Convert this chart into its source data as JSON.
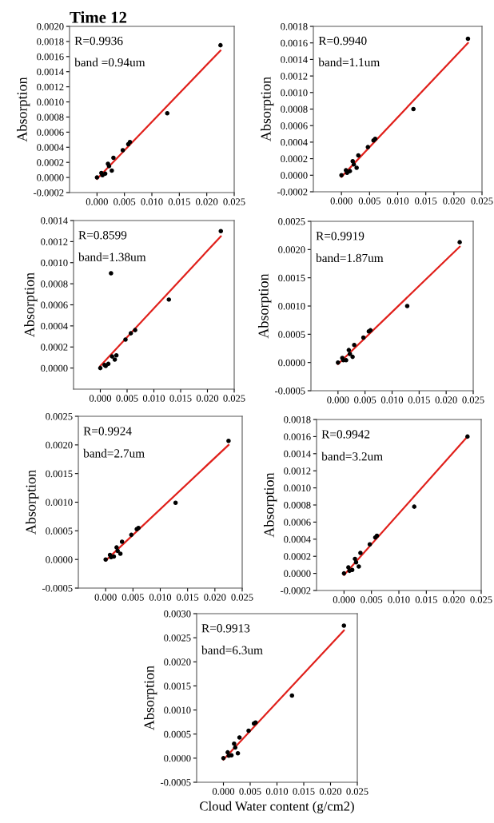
{
  "chart_data": [
    {
      "type": "scatter",
      "title": "Time 12",
      "ylabel": "Absorption",
      "annotations": [
        "R=0.9936",
        "band =0.94um"
      ],
      "xlim": [
        -0.005,
        0.025
      ],
      "ylim": [
        -0.0002,
        0.002
      ],
      "grid": false,
      "legend": false,
      "xticks": [
        {
          "value": 0,
          "label": "0.000"
        },
        {
          "value": 0.005,
          "label": "0.005"
        },
        {
          "value": 0.01,
          "label": "0.010"
        },
        {
          "value": 0.015,
          "label": "0.015"
        },
        {
          "value": 0.02,
          "label": "0.020"
        },
        {
          "value": 0.025,
          "label": "0.025"
        }
      ],
      "yticks": [
        {
          "value": -0.0002,
          "label": "-0.0002"
        },
        {
          "value": 0,
          "label": "0.0000"
        },
        {
          "value": 0.0002,
          "label": "0.0002"
        },
        {
          "value": 0.0004,
          "label": "0.0004"
        },
        {
          "value": 0.0006,
          "label": "0.0006"
        },
        {
          "value": 0.0008,
          "label": "0.0008"
        },
        {
          "value": 0.001,
          "label": "0.0010"
        },
        {
          "value": 0.0012,
          "label": "0.0012"
        },
        {
          "value": 0.0014,
          "label": "0.0014"
        },
        {
          "value": 0.0016,
          "label": "0.0016"
        },
        {
          "value": 0.0018,
          "label": "0.0018"
        },
        {
          "value": 0.002,
          "label": "0.0020"
        }
      ],
      "series": [
        {
          "color": "#000000",
          "marker": "circle",
          "x": [
            0.0,
            0.0008,
            0.001,
            0.0015,
            0.002,
            0.0022,
            0.0027,
            0.003,
            0.0047,
            0.0057,
            0.006,
            0.0128,
            0.0225
          ],
          "values": [
            0.0,
            6e-05,
            3e-05,
            5e-05,
            0.00018,
            0.00015,
            9e-05,
            0.00026,
            0.00036,
            0.00044,
            0.00047,
            0.00085,
            0.00175
          ]
        },
        {
          "type": "line",
          "marker": "none",
          "color": "#e0201b",
          "x": [
            0.0,
            0.0225
          ],
          "values": [
            -2e-05,
            0.00168
          ]
        }
      ]
    },
    {
      "type": "scatter",
      "ylabel": "Absorption",
      "annotations": [
        "R=0.9940",
        "band=1.1um"
      ],
      "xlim": [
        -0.005,
        0.025
      ],
      "ylim": [
        -0.0002,
        0.0018
      ],
      "grid": false,
      "legend": false,
      "xticks": [
        {
          "value": 0,
          "label": "0.000"
        },
        {
          "value": 0.005,
          "label": "0.005"
        },
        {
          "value": 0.01,
          "label": "0.010"
        },
        {
          "value": 0.015,
          "label": "0.015"
        },
        {
          "value": 0.02,
          "label": "0.020"
        },
        {
          "value": 0.025,
          "label": "0.025"
        }
      ],
      "yticks": [
        {
          "value": -0.0002,
          "label": "-0.0002"
        },
        {
          "value": 0,
          "label": "0.0000"
        },
        {
          "value": 0.0002,
          "label": "0.0002"
        },
        {
          "value": 0.0004,
          "label": "0.0004"
        },
        {
          "value": 0.0006,
          "label": "0.0006"
        },
        {
          "value": 0.0008,
          "label": "0.0008"
        },
        {
          "value": 0.001,
          "label": "0.0010"
        },
        {
          "value": 0.0012,
          "label": "0.0012"
        },
        {
          "value": 0.0014,
          "label": "0.0014"
        },
        {
          "value": 0.0016,
          "label": "0.0016"
        },
        {
          "value": 0.0018,
          "label": "0.0018"
        }
      ],
      "series": [
        {
          "color": "#000000",
          "marker": "circle",
          "x": [
            0.0,
            0.0008,
            0.001,
            0.0015,
            0.002,
            0.0022,
            0.0027,
            0.003,
            0.0047,
            0.0057,
            0.006,
            0.0128,
            0.0225
          ],
          "values": [
            0.0,
            6e-05,
            3e-05,
            5e-05,
            0.00017,
            0.00013,
            9e-05,
            0.00024,
            0.00034,
            0.00042,
            0.00044,
            0.0008,
            0.00165
          ]
        },
        {
          "type": "line",
          "marker": "none",
          "color": "#e0201b",
          "x": [
            0.0,
            0.0225
          ],
          "values": [
            -2e-05,
            0.0016
          ]
        }
      ]
    },
    {
      "type": "scatter",
      "ylabel": "Absorption",
      "annotations": [
        "R=0.8599",
        "band=1.38um"
      ],
      "xlim": [
        -0.005,
        0.025
      ],
      "ylim": [
        -0.0002,
        0.0014
      ],
      "grid": false,
      "legend": false,
      "xticks": [
        {
          "value": 0,
          "label": "0.000"
        },
        {
          "value": 0.005,
          "label": "0.005"
        },
        {
          "value": 0.01,
          "label": "0.010"
        },
        {
          "value": 0.015,
          "label": "0.015"
        },
        {
          "value": 0.02,
          "label": "0.020"
        },
        {
          "value": 0.025,
          "label": "0.025"
        }
      ],
      "yticks": [
        {
          "value": 0,
          "label": "0.0000"
        },
        {
          "value": 0.0002,
          "label": "0.0002"
        },
        {
          "value": 0.0004,
          "label": "0.0004"
        },
        {
          "value": 0.0006,
          "label": "0.0006"
        },
        {
          "value": 0.0008,
          "label": "0.0008"
        },
        {
          "value": 0.001,
          "label": "0.0010"
        },
        {
          "value": 0.0012,
          "label": "0.0012"
        },
        {
          "value": 0.0014,
          "label": "0.0014"
        }
      ],
      "series": [
        {
          "color": "#000000",
          "marker": "circle",
          "x": [
            0.0,
            0.0008,
            0.001,
            0.0015,
            0.002,
            0.0022,
            0.0027,
            0.003,
            0.0047,
            0.0057,
            0.0065,
            0.0128,
            0.0225
          ],
          "values": [
            0.0,
            3e-05,
            2e-05,
            4e-05,
            0.0009,
            0.00011,
            8e-05,
            0.00012,
            0.00027,
            0.00033,
            0.00036,
            0.00065,
            0.0013
          ]
        },
        {
          "type": "line",
          "marker": "none",
          "color": "#e0201b",
          "x": [
            0.0,
            0.0225
          ],
          "values": [
            2e-05,
            0.00125
          ]
        }
      ]
    },
    {
      "type": "scatter",
      "ylabel": "Absorption",
      "annotations": [
        "R=0.9919",
        "band=1.87um"
      ],
      "xlim": [
        -0.005,
        0.025
      ],
      "ylim": [
        -0.0005,
        0.0025
      ],
      "grid": false,
      "legend": false,
      "xticks": [
        {
          "value": 0,
          "label": "0.000"
        },
        {
          "value": 0.005,
          "label": "0.005"
        },
        {
          "value": 0.01,
          "label": "0.010"
        },
        {
          "value": 0.015,
          "label": "0.015"
        },
        {
          "value": 0.02,
          "label": "0.020"
        },
        {
          "value": 0.025,
          "label": "0.025"
        }
      ],
      "yticks": [
        {
          "value": -0.0005,
          "label": "-0.0005"
        },
        {
          "value": 0,
          "label": "0.0000"
        },
        {
          "value": 0.0005,
          "label": "0.0005"
        },
        {
          "value": 0.001,
          "label": "0.0010"
        },
        {
          "value": 0.0015,
          "label": "0.0015"
        },
        {
          "value": 0.002,
          "label": "0.0020"
        },
        {
          "value": 0.0025,
          "label": "0.0025"
        }
      ],
      "series": [
        {
          "color": "#000000",
          "marker": "circle",
          "x": [
            0.0,
            0.0008,
            0.001,
            0.0015,
            0.002,
            0.0022,
            0.0027,
            0.003,
            0.0047,
            0.0057,
            0.006,
            0.0128,
            0.0225
          ],
          "values": [
            0.0,
            8e-05,
            4e-05,
            4e-05,
            0.00022,
            0.00015,
            0.0001,
            0.00031,
            0.00044,
            0.00055,
            0.00057,
            0.001,
            0.00213
          ]
        },
        {
          "type": "line",
          "marker": "none",
          "color": "#e0201b",
          "x": [
            0.0,
            0.0225
          ],
          "values": [
            -3e-05,
            0.00205
          ]
        }
      ]
    },
    {
      "type": "scatter",
      "ylabel": "Absorption",
      "annotations": [
        "R=0.9924",
        "band=2.7um"
      ],
      "xlim": [
        -0.005,
        0.025
      ],
      "ylim": [
        -0.0005,
        0.0025
      ],
      "grid": false,
      "legend": false,
      "xticks": [
        {
          "value": 0,
          "label": "0.000"
        },
        {
          "value": 0.005,
          "label": "0.005"
        },
        {
          "value": 0.01,
          "label": "0.010"
        },
        {
          "value": 0.015,
          "label": "0.015"
        },
        {
          "value": 0.02,
          "label": "0.020"
        },
        {
          "value": 0.025,
          "label": "0.025"
        }
      ],
      "yticks": [
        {
          "value": -0.0005,
          "label": "-0.0005"
        },
        {
          "value": 0,
          "label": "0.0000"
        },
        {
          "value": 0.0005,
          "label": "0.0005"
        },
        {
          "value": 0.001,
          "label": "0.0010"
        },
        {
          "value": 0.0015,
          "label": "0.0015"
        },
        {
          "value": 0.002,
          "label": "0.0020"
        },
        {
          "value": 0.0025,
          "label": "0.0025"
        }
      ],
      "series": [
        {
          "color": "#000000",
          "marker": "circle",
          "x": [
            0.0,
            0.0008,
            0.001,
            0.0015,
            0.002,
            0.0022,
            0.0027,
            0.003,
            0.0047,
            0.0057,
            0.006,
            0.0128,
            0.0225
          ],
          "values": [
            0.0,
            8e-05,
            4e-05,
            5e-05,
            0.00021,
            0.00015,
            0.0001,
            0.00031,
            0.00043,
            0.00053,
            0.00055,
            0.00099,
            0.00207
          ]
        },
        {
          "type": "line",
          "marker": "none",
          "color": "#e0201b",
          "x": [
            0.0,
            0.0225
          ],
          "values": [
            -2e-05,
            0.002
          ]
        }
      ]
    },
    {
      "type": "scatter",
      "ylabel": "Absorption",
      "annotations": [
        "R=0.9942",
        "band=3.2um"
      ],
      "xlim": [
        -0.005,
        0.025
      ],
      "ylim": [
        -0.0002,
        0.0018
      ],
      "grid": false,
      "legend": false,
      "xticks": [
        {
          "value": 0,
          "label": "0.000"
        },
        {
          "value": 0.005,
          "label": "0.005"
        },
        {
          "value": 0.01,
          "label": "0.010"
        },
        {
          "value": 0.015,
          "label": "0.015"
        },
        {
          "value": 0.02,
          "label": "0.020"
        },
        {
          "value": 0.025,
          "label": "0.025"
        }
      ],
      "yticks": [
        {
          "value": -0.0002,
          "label": "-0.0002"
        },
        {
          "value": 0,
          "label": "0.0000"
        },
        {
          "value": 0.0002,
          "label": "0.0002"
        },
        {
          "value": 0.0004,
          "label": "0.0004"
        },
        {
          "value": 0.0006,
          "label": "0.0006"
        },
        {
          "value": 0.0008,
          "label": "0.0008"
        },
        {
          "value": 0.001,
          "label": "0.0010"
        },
        {
          "value": 0.0012,
          "label": "0.0012"
        },
        {
          "value": 0.0014,
          "label": "0.0014"
        },
        {
          "value": 0.0016,
          "label": "0.0016"
        },
        {
          "value": 0.0018,
          "label": "0.0018"
        }
      ],
      "series": [
        {
          "color": "#000000",
          "marker": "circle",
          "x": [
            0.0,
            0.0008,
            0.001,
            0.0015,
            0.002,
            0.0022,
            0.0027,
            0.003,
            0.0047,
            0.0057,
            0.006,
            0.0128,
            0.0225
          ],
          "values": [
            0.0,
            7e-05,
            3e-05,
            4e-05,
            0.00017,
            0.00013,
            8e-05,
            0.00024,
            0.00034,
            0.00042,
            0.00044,
            0.00078,
            0.0016
          ]
        },
        {
          "type": "line",
          "marker": "none",
          "color": "#e0201b",
          "x": [
            0.0,
            0.0225
          ],
          "values": [
            -2e-05,
            0.0016
          ]
        }
      ]
    },
    {
      "type": "scatter",
      "ylabel": "Absorption",
      "xlabel": "Cloud Water content (g/cm2)",
      "annotations": [
        "R=0.9913",
        "band=6.3um"
      ],
      "xlim": [
        -0.005,
        0.025
      ],
      "ylim": [
        -0.0005,
        0.003
      ],
      "grid": false,
      "legend": false,
      "xticks": [
        {
          "value": 0,
          "label": "0.000"
        },
        {
          "value": 0.005,
          "label": "0.005"
        },
        {
          "value": 0.01,
          "label": "0.010"
        },
        {
          "value": 0.015,
          "label": "0.015"
        },
        {
          "value": 0.02,
          "label": "0.020"
        },
        {
          "value": 0.025,
          "label": "0.025"
        }
      ],
      "yticks": [
        {
          "value": -0.0005,
          "label": "-0.0005"
        },
        {
          "value": 0,
          "label": "0.0000"
        },
        {
          "value": 0.0005,
          "label": "0.0005"
        },
        {
          "value": 0.001,
          "label": "0.0010"
        },
        {
          "value": 0.0015,
          "label": "0.0015"
        },
        {
          "value": 0.002,
          "label": "0.0020"
        },
        {
          "value": 0.0025,
          "label": "0.0025"
        },
        {
          "value": 0.003,
          "label": "0.0030"
        }
      ],
      "series": [
        {
          "color": "#000000",
          "marker": "circle",
          "x": [
            0.0,
            0.0008,
            0.001,
            0.0015,
            0.002,
            0.0022,
            0.0027,
            0.003,
            0.0047,
            0.0057,
            0.006,
            0.0128,
            0.0225
          ],
          "values": [
            0.0,
            0.00012,
            5e-05,
            6e-05,
            0.0003,
            0.00022,
            0.0001,
            0.00043,
            0.00057,
            0.00072,
            0.00074,
            0.0013,
            0.00275
          ]
        },
        {
          "type": "line",
          "marker": "none",
          "color": "#e0201b",
          "x": [
            0.0,
            0.0225
          ],
          "values": [
            -3e-05,
            0.00265
          ]
        }
      ]
    }
  ]
}
